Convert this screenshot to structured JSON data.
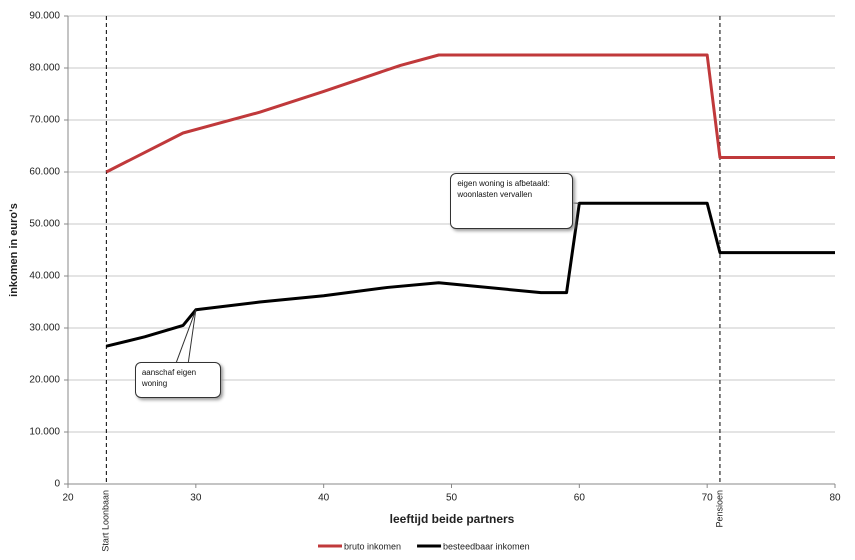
{
  "chart_data": {
    "type": "line",
    "x_label": "leeftijd beide partners",
    "y_label": "inkomen in euro's",
    "xlim": [
      20,
      80
    ],
    "xticks": [
      20,
      30,
      40,
      50,
      60,
      70,
      80
    ],
    "ylim": [
      0,
      90000
    ],
    "yticks": [
      0,
      {
        "value": 10000,
        "label": "10.000"
      },
      {
        "value": 20000,
        "label": "20.000"
      },
      {
        "value": 30000,
        "label": "30.000"
      },
      {
        "value": 40000,
        "label": "40.000"
      },
      {
        "value": 50000,
        "label": "50.000"
      },
      {
        "value": 60000,
        "label": "60.000"
      },
      {
        "value": 70000,
        "label": "70.000"
      },
      {
        "value": 80000,
        "label": "80.000"
      },
      {
        "value": 90000,
        "label": "90.000"
      }
    ],
    "grid": true,
    "legend": "bottom",
    "series": [
      {
        "name": "bruto inkomen",
        "color": "#c0393b",
        "x": [
          23,
          29,
          35,
          40,
          46,
          49,
          70,
          71,
          80
        ],
        "values": [
          60000,
          67500,
          71500,
          75500,
          80500,
          82500,
          82500,
          62800,
          62800
        ]
      },
      {
        "name": "besteedbaar inkomen",
        "color": "#000000",
        "x": [
          23,
          26,
          29,
          30,
          35,
          40,
          45,
          49,
          57,
          59,
          60,
          70,
          71,
          80
        ],
        "values": [
          26500,
          28300,
          30500,
          33500,
          35000,
          36200,
          37800,
          38700,
          36800,
          36800,
          54000,
          54000,
          44500,
          44500
        ]
      }
    ],
    "vlines": [
      {
        "x": 23,
        "label": "Start Loonbaan"
      },
      {
        "x": 71,
        "label": "Pensioen"
      }
    ],
    "annotations": [
      {
        "text": "aanschaf eigen woning",
        "x": 30,
        "y": 33500
      },
      {
        "text": "eigen woning is afbetaald: woonlasten vervallen",
        "x": 60,
        "y": 54000
      }
    ]
  }
}
